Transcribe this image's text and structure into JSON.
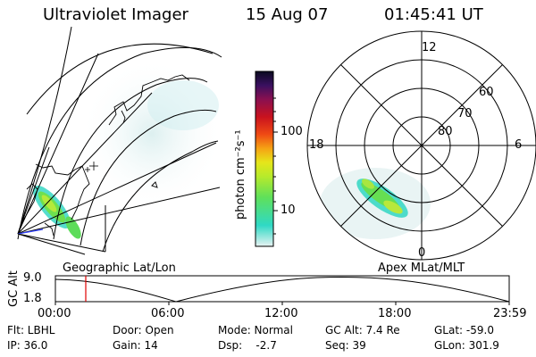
{
  "header": {
    "instrument": "Ultraviolet Imager",
    "date": "15 Aug 07",
    "time": "01:45:41 UT"
  },
  "colorbar": {
    "unit_label": "photon cm⁻²s⁻¹",
    "tick_labels": [
      "100",
      "10"
    ],
    "scale": "log",
    "colors": [
      "#e8f2f2",
      "#2fd9c5",
      "#5fe05a",
      "#b7ea2b",
      "#e6e61a",
      "#f5a214",
      "#ef4a14",
      "#c9121e",
      "#8a1050",
      "#3a1060",
      "#0a0a20"
    ]
  },
  "geo_panel": {
    "label": "Geographic Lat/Lon"
  },
  "polar_panel": {
    "label": "Apex MLat/MLT",
    "clock_labels": {
      "top": "12",
      "left": "18",
      "right": "6",
      "bottom": "0"
    },
    "lat_labels": [
      "60",
      "70",
      "80"
    ]
  },
  "altitude_plot": {
    "ylabel": "GC Alt",
    "yticks": [
      "9.0",
      "1.8"
    ],
    "xticks": [
      "00:00",
      "06:00",
      "12:00",
      "18:00",
      "23:59"
    ],
    "marker_color": "#e00000",
    "marker_time": "01:45"
  },
  "info": {
    "flt": "Flt: LBHL",
    "door": "Door: Open",
    "mode": "Mode: Normal",
    "gc_alt": "GC Alt: 7.4 Re",
    "glat": "GLat: -59.0",
    "ip": "IP: 36.0",
    "gain": "Gain: 14",
    "dsp": "Dsp:    -2.7",
    "seq": "Seq: 39",
    "glon": "GLon: 301.9"
  }
}
